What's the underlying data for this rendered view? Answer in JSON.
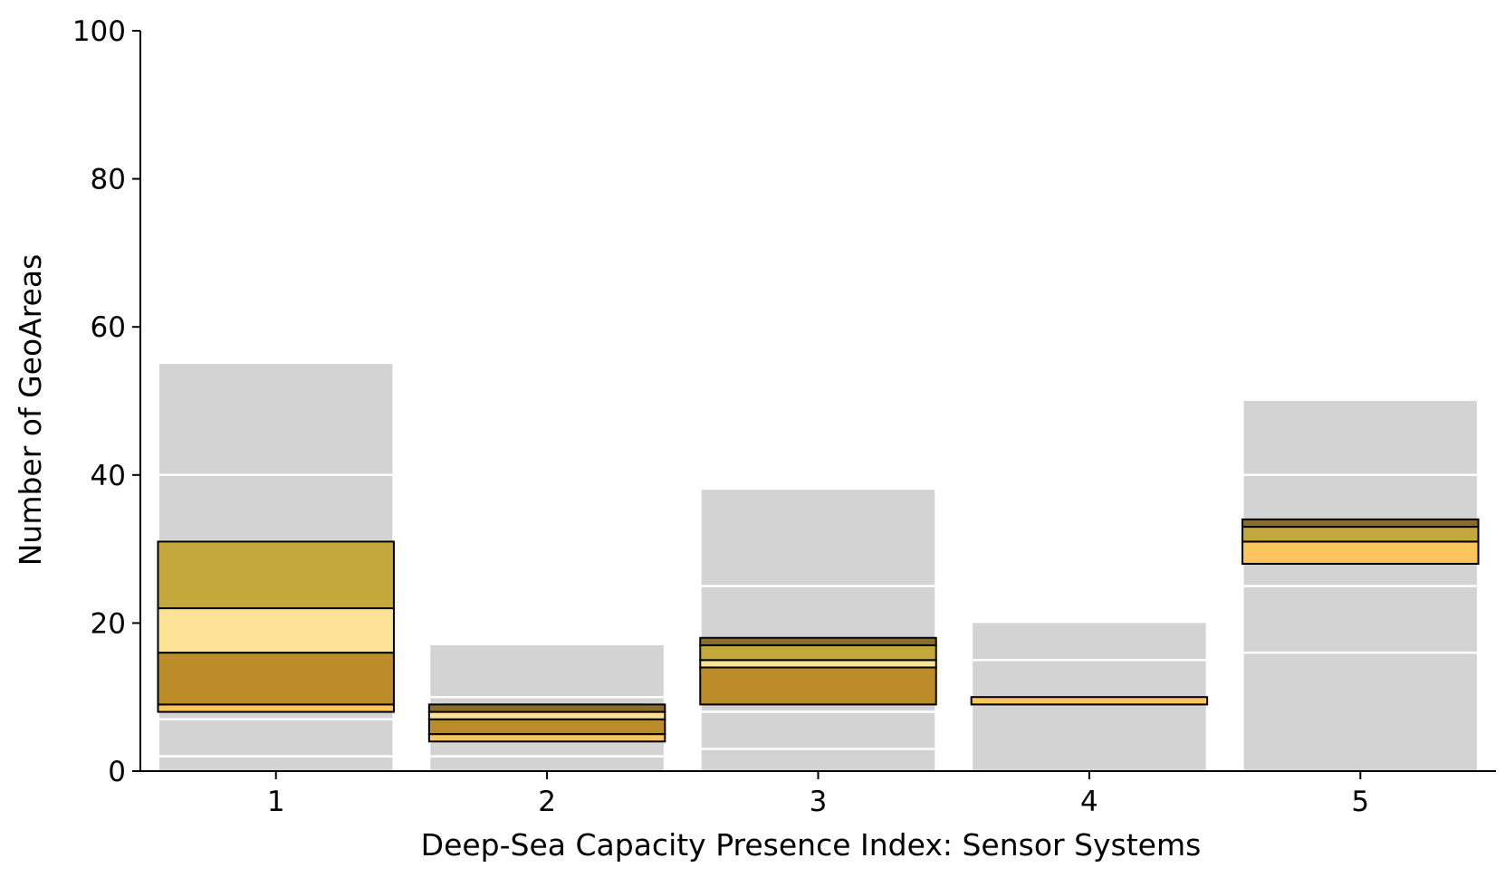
{
  "chart_data": {
    "type": "bar",
    "xlabel": "Deep-Sea Capacity Presence Index: Sensor Systems",
    "ylabel": "Number of GeoAreas",
    "ylim": [
      0,
      100
    ],
    "yticks": [
      0,
      20,
      40,
      60,
      80,
      100
    ],
    "categories": [
      "1",
      "2",
      "3",
      "4",
      "5"
    ],
    "grid": false,
    "colors": {
      "background_bar": "#d3d3d3",
      "background_divider": "#ffffff",
      "edge": "#000000",
      "segment_palette": [
        "#fbc45c",
        "#bc8b2a",
        "#fbe294",
        "#c4a83c",
        "#8c6c2a"
      ]
    },
    "background_stacks": [
      {
        "category": "1",
        "total": 55,
        "boundaries": [
          2,
          7,
          40
        ]
      },
      {
        "category": "2",
        "total": 17,
        "boundaries": [
          2,
          10
        ]
      },
      {
        "category": "3",
        "total": 38,
        "boundaries": [
          3,
          8,
          25
        ]
      },
      {
        "category": "4",
        "total": 20,
        "boundaries": [
          15
        ]
      },
      {
        "category": "5",
        "total": 50,
        "boundaries": [
          16,
          25,
          40
        ]
      }
    ],
    "highlight_stacks": [
      {
        "category": "1",
        "segments": [
          {
            "from": 8,
            "to": 9,
            "color": "#fbc45c"
          },
          {
            "from": 9,
            "to": 16,
            "color": "#bc8b2a"
          },
          {
            "from": 16,
            "to": 22,
            "color": "#fbe294"
          },
          {
            "from": 22,
            "to": 31,
            "color": "#c4a83c"
          }
        ]
      },
      {
        "category": "2",
        "segments": [
          {
            "from": 4,
            "to": 5,
            "color": "#fbc45c"
          },
          {
            "from": 5,
            "to": 7,
            "color": "#bc8b2a"
          },
          {
            "from": 7,
            "to": 8,
            "color": "#fbe294"
          },
          {
            "from": 8,
            "to": 9,
            "color": "#8c6c2a"
          }
        ]
      },
      {
        "category": "3",
        "segments": [
          {
            "from": 9,
            "to": 14,
            "color": "#bc8b2a"
          },
          {
            "from": 14,
            "to": 15,
            "color": "#fbe294"
          },
          {
            "from": 15,
            "to": 17,
            "color": "#c4a83c"
          },
          {
            "from": 17,
            "to": 18,
            "color": "#8c6c2a"
          }
        ]
      },
      {
        "category": "4",
        "segments": [
          {
            "from": 9,
            "to": 10,
            "color": "#fbc45c"
          }
        ]
      },
      {
        "category": "5",
        "segments": [
          {
            "from": 28,
            "to": 31,
            "color": "#fbc45c"
          },
          {
            "from": 31,
            "to": 33,
            "color": "#c4a83c"
          },
          {
            "from": 33,
            "to": 34,
            "color": "#8c6c2a"
          }
        ]
      }
    ]
  }
}
